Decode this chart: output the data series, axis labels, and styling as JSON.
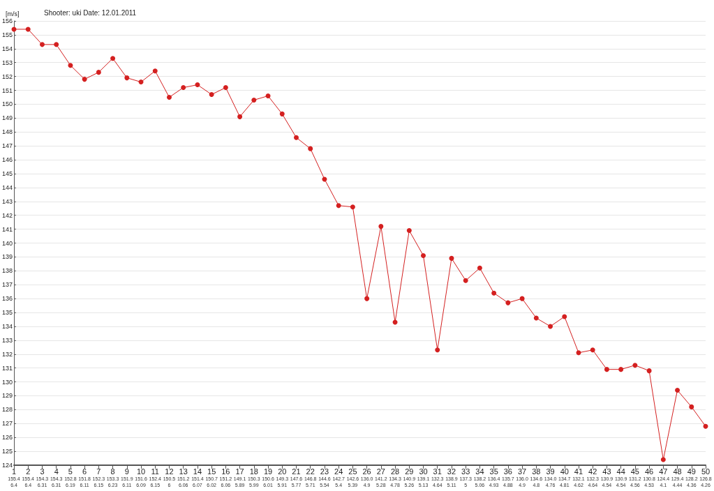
{
  "chart_data": {
    "type": "line",
    "title": "Shooter: uki Date: 12.01.2011",
    "ylabel": "[m/s]",
    "categories": [
      "1\n155.4\n6.4",
      "2\n155.4\n6.4",
      "3\n154.3\n6.31",
      "4\n154.3\n6.31",
      "5\n152.8\n6.19",
      "6\n151.8\n6.11",
      "7\n152.3\n6.15",
      "8\n153.3\n6.23",
      "9\n151.9\n6.11",
      "10\n151.6\n6.09",
      "11\n152.4\n6.15",
      "12\n150.5\n6",
      "13\n151.2\n6.06",
      "14\n151.4\n6.07",
      "15\n150.7\n6.02",
      "16\n151.2\n6.06",
      "17\n149.1\n5.89",
      "18\n150.3\n5.99",
      "19\n150.6\n6.01",
      "20\n149.3\n5.91",
      "21\n147.6\n5.77",
      "22\n146.8\n5.71",
      "23\n144.6\n5.54",
      "24\n142.7\n5.4",
      "25\n142.6\n5.39",
      "26\n136.0\n4.9",
      "27\n141.2\n5.28",
      "28\n134.3\n4.78",
      "29\n140.9\n5.26",
      "30\n139.1\n5.13",
      "31\n132.3\n4.64",
      "32\n138.9\n5.11",
      "33\n137.3\n5",
      "34\n138.2\n5.06",
      "35\n136.4\n4.93",
      "36\n135.7\n4.88",
      "37\n136.0\n4.9",
      "38\n134.6\n4.8",
      "39\n134.0\n4.76",
      "40\n134.7\n4.81",
      "41\n132.1\n4.62",
      "42\n132.3\n4.64",
      "43\n130.9\n4.54",
      "44\n130.9\n4.54",
      "45\n131.2\n4.56",
      "46\n130.8\n4.53",
      "47\n124.4\n4.1",
      "48\n129.4\n4.44",
      "49\n128.2\n4.36",
      "50\n126.8\n4.26"
    ],
    "values": [
      155.4,
      155.4,
      154.3,
      154.3,
      152.8,
      151.8,
      152.3,
      153.3,
      151.9,
      151.6,
      152.4,
      150.5,
      151.2,
      151.4,
      150.7,
      151.2,
      149.1,
      150.3,
      150.6,
      149.3,
      147.6,
      146.8,
      144.6,
      142.7,
      142.6,
      136.0,
      141.2,
      134.3,
      140.9,
      139.1,
      132.3,
      138.9,
      137.3,
      138.2,
      136.4,
      135.7,
      136.0,
      134.6,
      134.0,
      134.7,
      132.1,
      132.3,
      130.9,
      130.9,
      131.2,
      130.8,
      124.4,
      129.4,
      128.2,
      126.8
    ],
    "color": "#d42020",
    "marker": "circle",
    "line_style": "solid",
    "grid": "y",
    "ylim": [
      124,
      156
    ],
    "yticks": [
      124,
      125,
      126,
      127,
      128,
      129,
      130,
      131,
      132,
      133,
      134,
      135,
      136,
      137,
      138,
      139,
      140,
      141,
      142,
      143,
      144,
      145,
      146,
      147,
      148,
      149,
      150,
      151,
      152,
      153,
      154,
      155,
      156
    ]
  }
}
